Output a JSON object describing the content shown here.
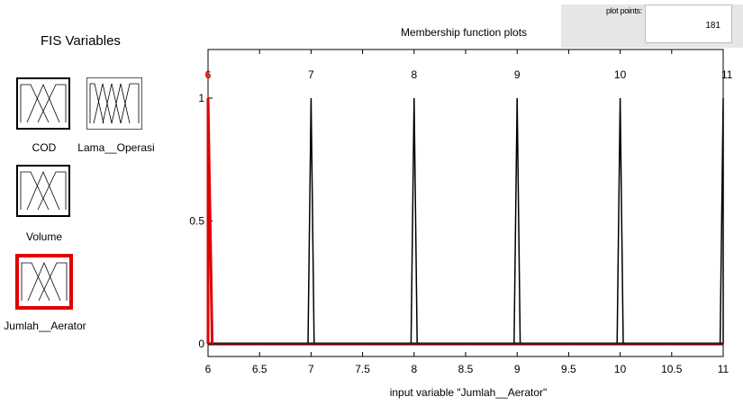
{
  "sidebar": {
    "title": "FIS Variables",
    "variables": [
      {
        "label": "COD",
        "selected": false
      },
      {
        "label": "Lama__Operasi",
        "selected": false
      },
      {
        "label": "Volume",
        "selected": false
      },
      {
        "label": "Jumlah__Aerator",
        "selected": true
      }
    ]
  },
  "plot": {
    "title": "Membership function plots",
    "points_label": "plot points:",
    "points_value": "181",
    "xlabel": "input variable \"Jumlah__Aerator\"",
    "xlim": [
      6,
      11
    ],
    "ylim": [
      0,
      1
    ],
    "x_ticks": [
      "6",
      "6.5",
      "7",
      "7.5",
      "8",
      "8.5",
      "9",
      "9.5",
      "10",
      "10.5",
      "11"
    ],
    "y_ticks": [
      "0",
      "0.5",
      "1"
    ],
    "mf_labels": [
      "6",
      "7",
      "8",
      "9",
      "10",
      "11"
    ],
    "selected_mf": "6",
    "selected_color": "#e00000"
  },
  "chart_data": {
    "type": "line",
    "title": "Membership function plots",
    "xlabel": "input variable \"Jumlah__Aerator\"",
    "ylabel": "",
    "xlim": [
      6,
      11
    ],
    "ylim": [
      0,
      1
    ],
    "series": [
      {
        "name": "6",
        "x": [
          6,
          6,
          6.04
        ],
        "y": [
          0,
          1,
          0
        ]
      },
      {
        "name": "7",
        "x": [
          6.97,
          7,
          7.03
        ],
        "y": [
          0,
          1,
          0
        ]
      },
      {
        "name": "8",
        "x": [
          7.97,
          8,
          8.03
        ],
        "y": [
          0,
          1,
          0
        ]
      },
      {
        "name": "9",
        "x": [
          8.97,
          9,
          9.03
        ],
        "y": [
          0,
          1,
          0
        ]
      },
      {
        "name": "10",
        "x": [
          9.97,
          10,
          10.03
        ],
        "y": [
          0,
          1,
          0
        ]
      },
      {
        "name": "11",
        "x": [
          10.97,
          11,
          11
        ],
        "y": [
          0,
          1,
          0
        ]
      }
    ]
  }
}
